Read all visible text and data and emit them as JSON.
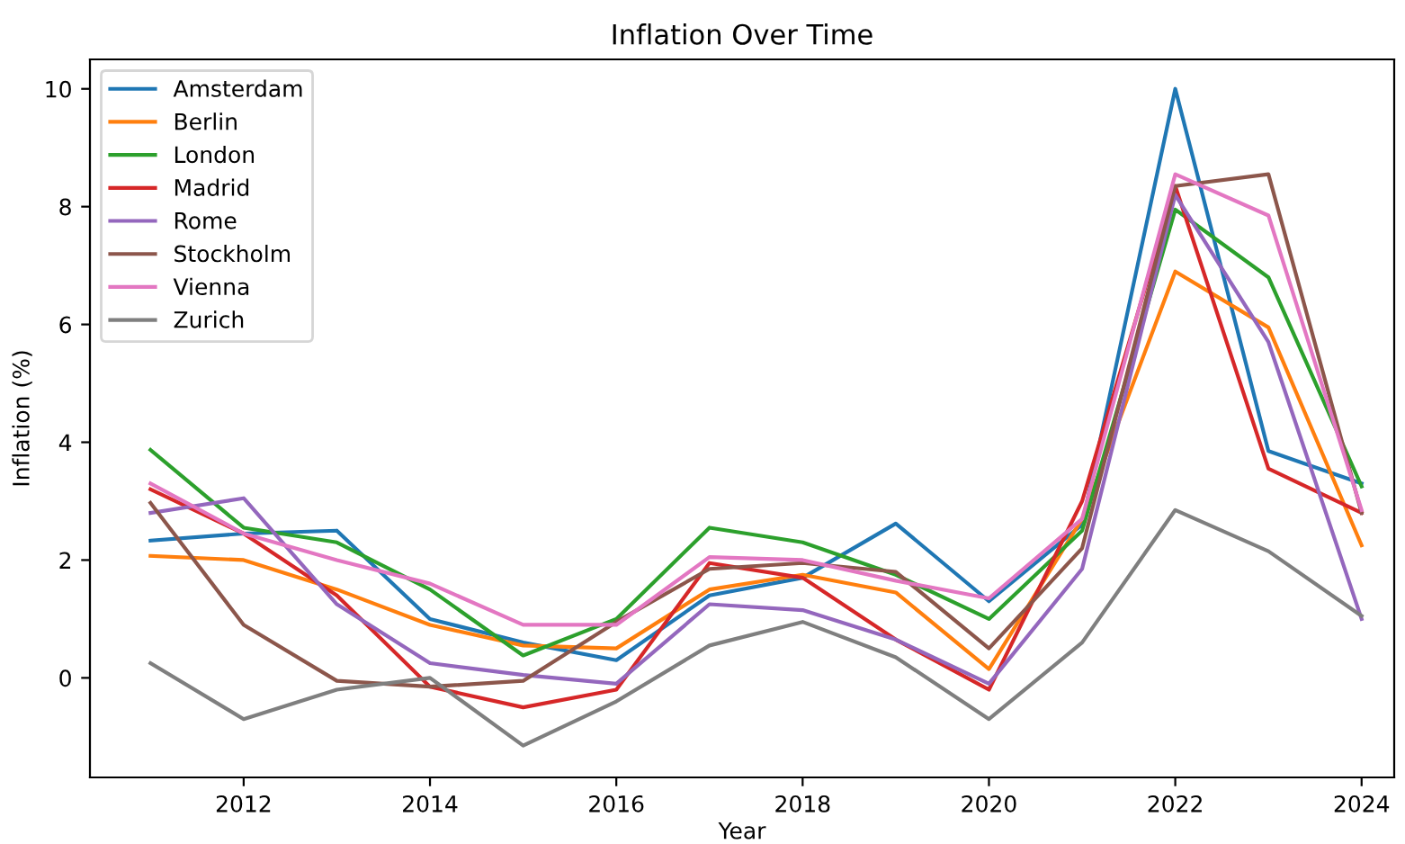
{
  "chart_data": {
    "type": "line",
    "title": "Inflation Over Time",
    "xlabel": "Year",
    "ylabel": "Inflation (%)",
    "x": [
      2011,
      2012,
      2013,
      2014,
      2015,
      2016,
      2017,
      2018,
      2019,
      2020,
      2021,
      2022,
      2023,
      2024
    ],
    "xlim": [
      2010.35,
      2024.35
    ],
    "xticks": [
      2012,
      2014,
      2016,
      2018,
      2020,
      2022,
      2024
    ],
    "ylim": [
      -1.69,
      10.5
    ],
    "yticks": [
      0,
      2,
      4,
      6,
      8,
      10
    ],
    "grid": false,
    "legend": "top left",
    "marker": "none",
    "line_style": "solid",
    "series": [
      {
        "name": "Amsterdam",
        "color": "#1f77b4",
        "values": [
          2.33,
          2.45,
          2.5,
          1.0,
          0.6,
          0.3,
          1.4,
          1.7,
          2.62,
          1.3,
          2.6,
          10.0,
          3.85,
          3.3
        ]
      },
      {
        "name": "Berlin",
        "color": "#ff7f0e",
        "values": [
          2.07,
          2.0,
          1.5,
          0.9,
          0.55,
          0.5,
          1.5,
          1.75,
          1.45,
          0.15,
          2.7,
          6.9,
          5.95,
          2.25
        ]
      },
      {
        "name": "London",
        "color": "#2ca02c",
        "values": [
          3.87,
          2.55,
          2.3,
          1.5,
          0.38,
          1.0,
          2.55,
          2.3,
          1.75,
          1.0,
          2.5,
          7.95,
          6.8,
          3.25
        ]
      },
      {
        "name": "Madrid",
        "color": "#d62728",
        "values": [
          3.2,
          2.45,
          1.4,
          -0.15,
          -0.5,
          -0.2,
          1.95,
          1.7,
          0.65,
          -0.2,
          3.0,
          8.35,
          3.55,
          2.8
        ]
      },
      {
        "name": "Rome",
        "color": "#9467bd",
        "values": [
          2.8,
          3.05,
          1.25,
          0.25,
          0.05,
          -0.1,
          1.25,
          1.15,
          0.65,
          -0.1,
          1.85,
          8.2,
          5.7,
          1.0
        ]
      },
      {
        "name": "Stockholm",
        "color": "#8c564b",
        "values": [
          2.97,
          0.9,
          -0.05,
          -0.15,
          -0.05,
          0.95,
          1.85,
          1.95,
          1.8,
          0.5,
          2.2,
          8.35,
          8.55,
          2.8
        ]
      },
      {
        "name": "Vienna",
        "color": "#e377c2",
        "values": [
          3.3,
          2.45,
          2.0,
          1.6,
          0.9,
          0.9,
          2.05,
          2.0,
          1.65,
          1.35,
          2.7,
          8.55,
          7.85,
          2.85
        ]
      },
      {
        "name": "Zurich",
        "color": "#7f7f7f",
        "values": [
          0.25,
          -0.7,
          -0.2,
          0.0,
          -1.15,
          -0.4,
          0.55,
          0.95,
          0.35,
          -0.7,
          0.6,
          2.85,
          2.15,
          1.05
        ]
      }
    ]
  }
}
